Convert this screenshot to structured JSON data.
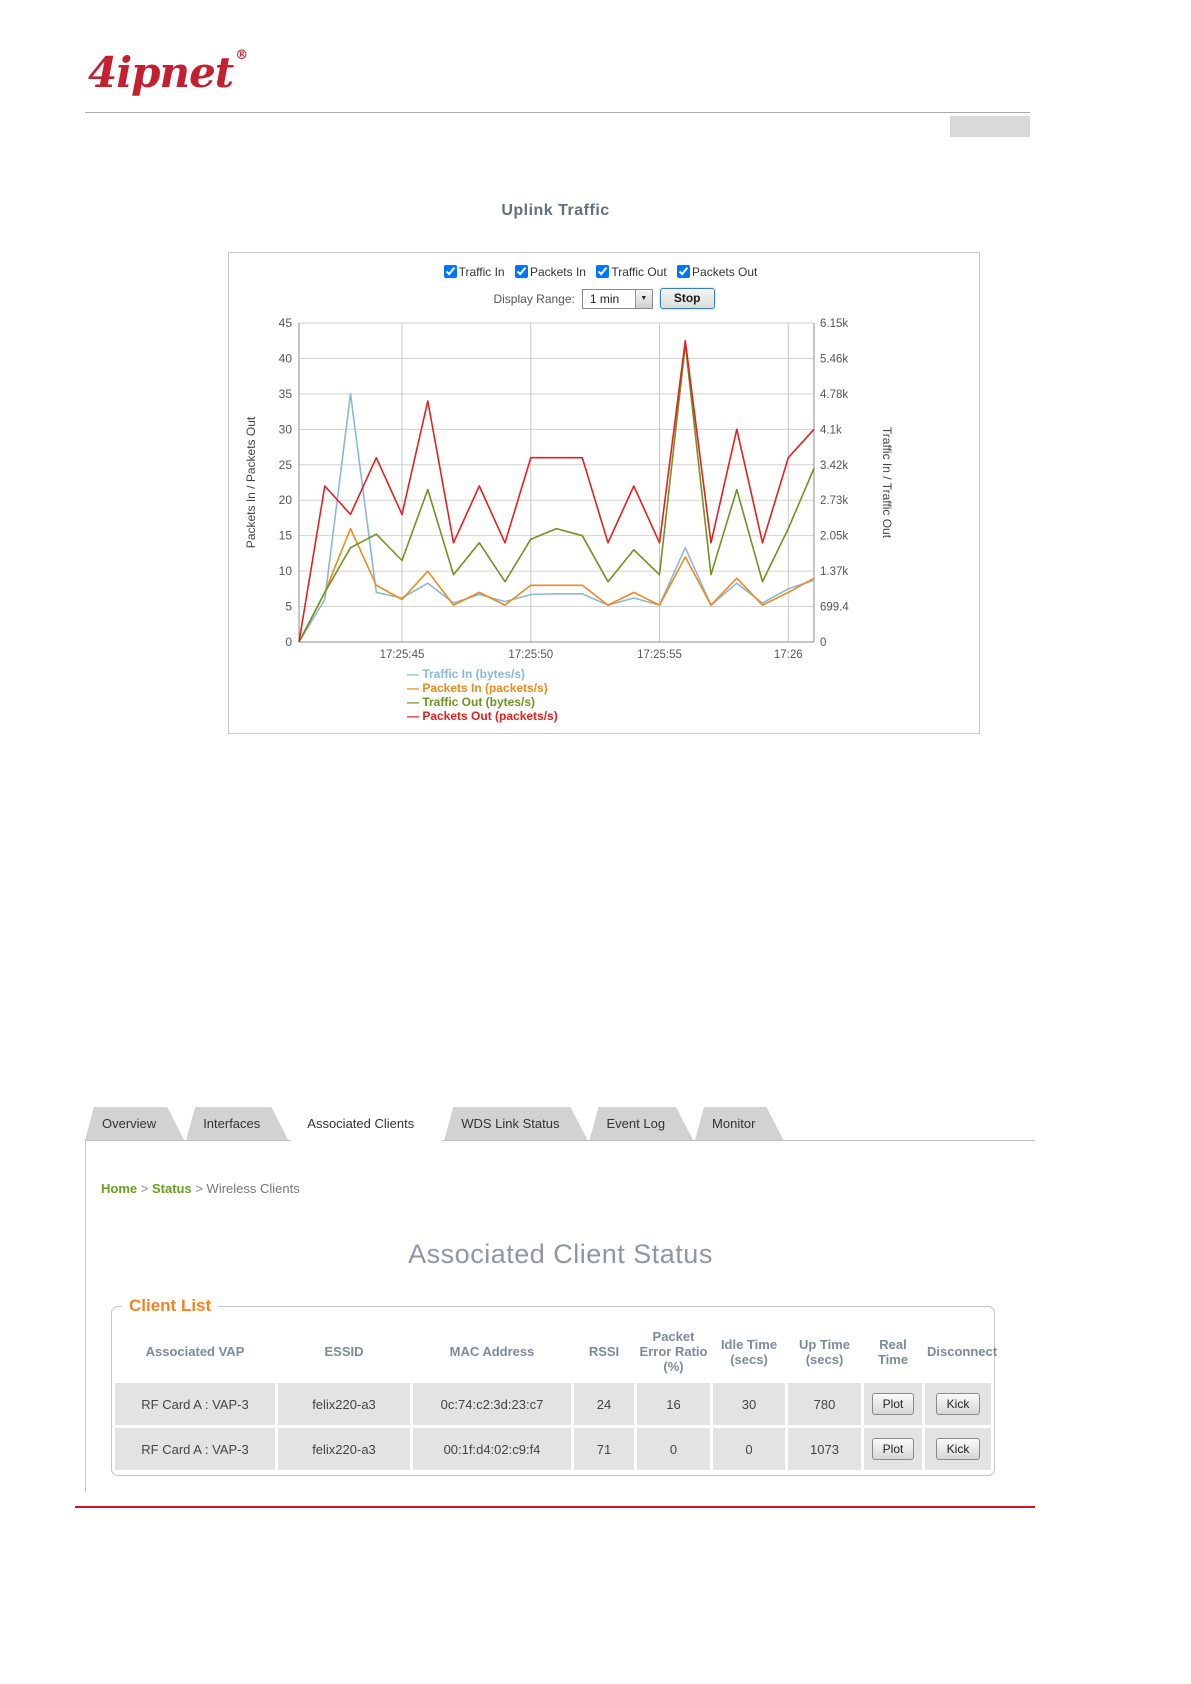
{
  "header": {
    "logo_text": "4ipnet",
    "logo_reg": "®"
  },
  "uplink": {
    "title": "Uplink Traffic",
    "checkboxes": [
      {
        "label": "Traffic In",
        "checked": true
      },
      {
        "label": "Packets In",
        "checked": true
      },
      {
        "label": "Traffic Out",
        "checked": true
      },
      {
        "label": "Packets Out",
        "checked": true
      }
    ],
    "display_range_label": "Display Range:",
    "display_range_value": "1 min",
    "stop_label": "Stop"
  },
  "chart_data": {
    "type": "line",
    "title": "Uplink Traffic",
    "ylabel_left": "Packets In / Packets Out",
    "ylabel_right": "Traffic In / Traffic Out",
    "ylim_left": [
      0,
      45
    ],
    "left_ticks": [
      0,
      5,
      10,
      15,
      20,
      25,
      30,
      35,
      40,
      45
    ],
    "right_tick_labels": [
      "0",
      "699.4",
      "1.37k",
      "2.05k",
      "2.73k",
      "3.42k",
      "4.1k",
      "4.78k",
      "5.46k",
      "6.15k"
    ],
    "x_tick_labels": [
      {
        "index": 4,
        "label": "17:25:45"
      },
      {
        "index": 9,
        "label": "17:25:50"
      },
      {
        "index": 14,
        "label": "17:25:55"
      },
      {
        "index": 19,
        "label": "17:26"
      }
    ],
    "grid": true,
    "legend_position": "bottom-left",
    "series": [
      {
        "name": "Traffic In (bytes/s)",
        "color": "#8bb8d8",
        "values": [
          0,
          6,
          35,
          7,
          6.2,
          8.3,
          5.5,
          6.7,
          5.7,
          6.7,
          6.8,
          6.8,
          5.2,
          6.2,
          5.2,
          13.3,
          5.2,
          8.3,
          5.5,
          7.5,
          8.7
        ]
      },
      {
        "name": "Packets In (packets/s)",
        "color": "#ef8a1d",
        "values": [
          0,
          7,
          16,
          8,
          6,
          10,
          5.2,
          7,
          5.2,
          8,
          8,
          8,
          5.2,
          7,
          5.2,
          12,
          5.2,
          9,
          5.2,
          7,
          9
        ]
      },
      {
        "name": "Traffic Out (bytes/s)",
        "color": "#6d9421",
        "values": [
          0,
          7,
          13.3,
          15.2,
          11.5,
          21.5,
          9.5,
          14,
          8.5,
          14.5,
          16,
          15,
          8.5,
          13,
          9.5,
          42,
          9.5,
          21.5,
          8.5,
          16,
          24.5
        ]
      },
      {
        "name": "Packets Out (packets/s)",
        "color": "#e32020",
        "values": [
          0,
          22,
          18,
          26,
          18,
          34,
          14,
          22,
          14,
          26,
          26,
          26,
          14,
          22,
          14,
          42.5,
          14,
          30,
          14,
          26,
          30
        ]
      }
    ]
  },
  "tabs": [
    {
      "label": "Overview",
      "active": false
    },
    {
      "label": "Interfaces",
      "active": false
    },
    {
      "label": "Associated Clients",
      "active": true
    },
    {
      "label": "WDS Link Status",
      "active": false
    },
    {
      "label": "Event Log",
      "active": false
    },
    {
      "label": "Monitor",
      "active": false
    }
  ],
  "breadcrumb": {
    "home": "Home",
    "sep1": ">",
    "status": "Status",
    "sep2": ">",
    "current": "Wireless Clients"
  },
  "status_page": {
    "title": "Associated Client Status",
    "client_list": {
      "legend": "Client List",
      "columns": [
        "Associated VAP",
        "ESSID",
        "MAC Address",
        "RSSI",
        "Packet Error Ratio (%)",
        "Idle Time (secs)",
        "Up Time (secs)",
        "Real Time",
        "Disconnect"
      ],
      "buttons": {
        "plot": "Plot",
        "kick": "Kick"
      },
      "rows": [
        {
          "vap": "RF Card A : VAP-3",
          "essid": "felix220-a3",
          "mac": "0c:74:c2:3d:23:c7",
          "rssi": "24",
          "per": "16",
          "idle": "30",
          "up": "780"
        },
        {
          "vap": "RF Card A : VAP-3",
          "essid": "felix220-a3",
          "mac": "00:1f:d4:02:c9:f4",
          "rssi": "71",
          "per": "0",
          "idle": "0",
          "up": "1073"
        }
      ]
    }
  }
}
